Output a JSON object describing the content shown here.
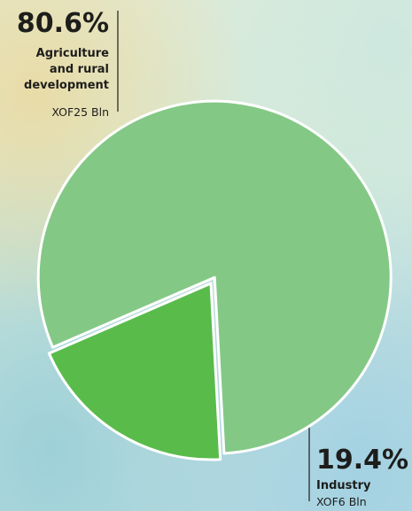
{
  "chart_data": {
    "type": "pie",
    "slices": [
      {
        "label": "Agriculture and rural development",
        "percent_label": "80.6%",
        "amount_label": "XOF25 Bln",
        "value": 25,
        "color": "#84c886"
      },
      {
        "label": "Industry",
        "percent_label": "19.4%",
        "amount_label": "XOF6 Bln",
        "value": 6,
        "color": "#58bb4a"
      }
    ],
    "exploded_slice": "Agriculture and rural development"
  }
}
